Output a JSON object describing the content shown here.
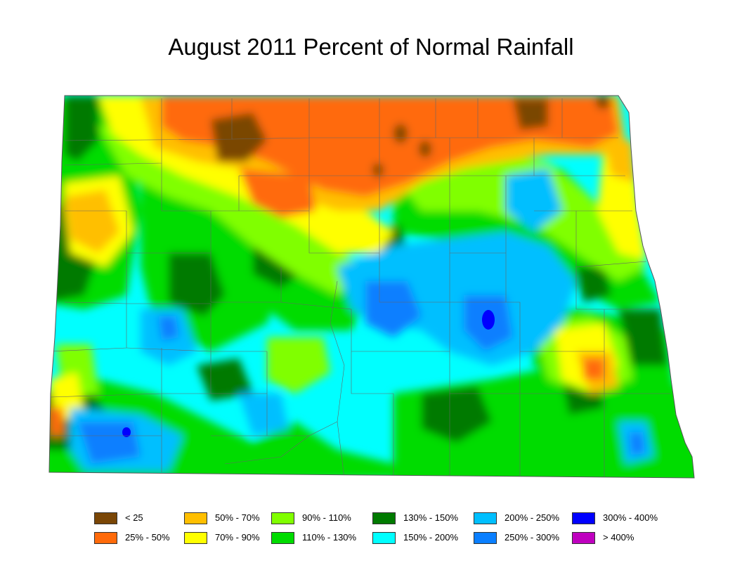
{
  "title": "August 2011 Percent of Normal Rainfall",
  "legend": [
    {
      "label": "< 25",
      "color": "#7a4606"
    },
    {
      "label": "25% - 50%",
      "color": "#ff6a0a"
    },
    {
      "label": "50% - 70%",
      "color": "#ffbf00"
    },
    {
      "label": "70% - 90%",
      "color": "#ffff00"
    },
    {
      "label": "90% - 110%",
      "color": "#80ff00"
    },
    {
      "label": "110% - 130%",
      "color": "#00dc00"
    },
    {
      "label": "130% - 150%",
      "color": "#007a00"
    },
    {
      "label": "150% - 200%",
      "color": "#00ffff"
    },
    {
      "label": "200% - 250%",
      "color": "#00bfff"
    },
    {
      "label": "250% - 300%",
      "color": "#0a7fff"
    },
    {
      "label": "300% - 400%",
      "color": "#0000ff"
    },
    {
      "label": "> 400%",
      "color": "#bf00bf"
    }
  ]
}
